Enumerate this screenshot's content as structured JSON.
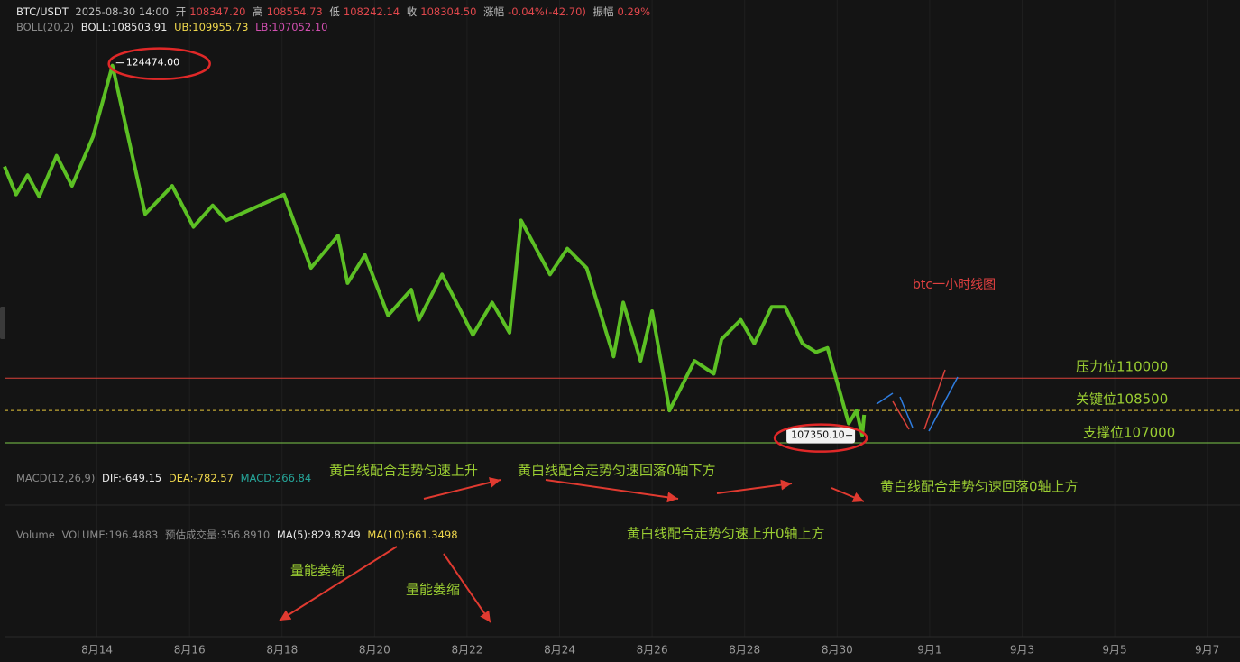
{
  "header": {
    "symbol": "BTC/USDT",
    "time": "2025-08-30 14:00",
    "open_label": "开",
    "open": "108347.20",
    "high_label": "高",
    "high": "108554.73",
    "low_label": "低",
    "low": "108242.14",
    "close_label": "收",
    "close": "108304.50",
    "change_label": "涨幅",
    "change": "-0.04%(-42.70)",
    "amplitude_label": "振幅",
    "amplitude": "0.29%",
    "boll": "BOLL(20,2)",
    "boll_mid": "BOLL:108503.91",
    "boll_ub": "UB:109955.73",
    "boll_lb": "LB:107052.10",
    "macd": "MACD(12,26,9)",
    "dif": "DIF:-649.15",
    "dea": "DEA:-782.57",
    "macd_value": "MACD:266.84",
    "volume": "Volume",
    "volume_value": "VOLUME:196.4883",
    "volume_estimate": "预估成交量:356.8910",
    "ma5": "MA(5):829.8249",
    "ma10": "MA(10):661.3498"
  },
  "annotations": [
    "btc一小时线图",
    "黄白线配合走势匀速上升",
    "黄白线配合走势匀速回落0轴下方",
    "黄白线配合走势匀速回落0轴上方",
    "黄白线配合走势匀速上升0轴上方",
    "量能萎缩",
    "量能萎缩"
  ],
  "chart_data": {
    "type": "line",
    "color": "#5cc024",
    "x": [
      "2025-08-12 00:00",
      "2025-08-12 06:00",
      "2025-08-12 12:00",
      "2025-08-12 18:00",
      "2025-08-13 03:00",
      "2025-08-13 11:00",
      "2025-08-13 22:00",
      "2025-08-14 08:00",
      "2025-08-15 01:00",
      "2025-08-15 15:00",
      "2025-08-16 02:00",
      "2025-08-16 12:00",
      "2025-08-16 19:00",
      "2025-08-18 01:00",
      "2025-08-18 15:00",
      "2025-08-19 05:00",
      "2025-08-19 10:00",
      "2025-08-19 19:00",
      "2025-08-20 07:00",
      "2025-08-20 19:00",
      "2025-08-20 23:00",
      "2025-08-21 11:00",
      "2025-08-22 03:00",
      "2025-08-22 13:00",
      "2025-08-22 22:00",
      "2025-08-23 04:00",
      "2025-08-23 19:00",
      "2025-08-24 04:00",
      "2025-08-24 14:00",
      "2025-08-25 04:00",
      "2025-08-25 09:00",
      "2025-08-25 18:00",
      "2025-08-26 00:00",
      "2025-08-26 09:00",
      "2025-08-26 22:00",
      "2025-08-27 08:00",
      "2025-08-27 12:00",
      "2025-08-27 22:00",
      "2025-08-28 05:00",
      "2025-08-28 14:00",
      "2025-08-28 21:00",
      "2025-08-29 06:00",
      "2025-08-29 13:00",
      "2025-08-29 19:00",
      "2025-08-30 06:00",
      "2025-08-30 10:00",
      "2025-08-30 13:00",
      "2025-08-30 14:00"
    ],
    "values": [
      119800,
      118500,
      119400,
      118400,
      120300,
      118900,
      121200,
      124474,
      117600,
      118900,
      117000,
      118000,
      117300,
      118500,
      115100,
      116600,
      114400,
      115700,
      112900,
      114100,
      112700,
      114800,
      112000,
      113500,
      112100,
      117300,
      114800,
      116000,
      115100,
      111000,
      113500,
      110800,
      113100,
      108500,
      110800,
      110200,
      111800,
      112700,
      111600,
      113300,
      113300,
      111600,
      111200,
      111400,
      107900,
      108500,
      107350.1,
      108300
    ],
    "xlim": [
      "2025-08-12 00:00",
      "2025-09-07 17:00"
    ],
    "ylim": [
      106000,
      127300
    ],
    "xticks": [
      {
        "value": "2025-08-14 00:00",
        "label": "8月14"
      },
      {
        "value": "2025-08-16 00:00",
        "label": "8月16"
      },
      {
        "value": "2025-08-18 00:00",
        "label": "8月18"
      },
      {
        "value": "2025-08-20 00:00",
        "label": "8月20"
      },
      {
        "value": "2025-08-22 00:00",
        "label": "8月22"
      },
      {
        "value": "2025-08-24 00:00",
        "label": "8月24"
      },
      {
        "value": "2025-08-26 00:00",
        "label": "8月26"
      },
      {
        "value": "2025-08-28 00:00",
        "label": "8月28"
      },
      {
        "value": "2025-08-30 00:00",
        "label": "8月30"
      },
      {
        "value": "2025-09-01 00:00",
        "label": "9月1"
      },
      {
        "value": "2025-09-03 00:00",
        "label": "9月3"
      },
      {
        "value": "2025-09-05 00:00",
        "label": "9月5"
      },
      {
        "value": "2025-09-07 00:00",
        "label": "9月7"
      }
    ],
    "levels": [
      {
        "value": 110000,
        "label": "压力位110000",
        "color": "#d9413a"
      },
      {
        "value": 108500,
        "label": "关键位108500",
        "color": "#e8c63a"
      },
      {
        "value": 107000,
        "label": "支撑位107000",
        "color": "#7cc84a"
      }
    ],
    "extremes": [
      {
        "x": "2025-08-14 08:00",
        "value": 124474,
        "label": "124474.00"
      },
      {
        "x": "2025-08-30 13:00",
        "value": 107350.1,
        "label": "107350.10"
      }
    ]
  }
}
